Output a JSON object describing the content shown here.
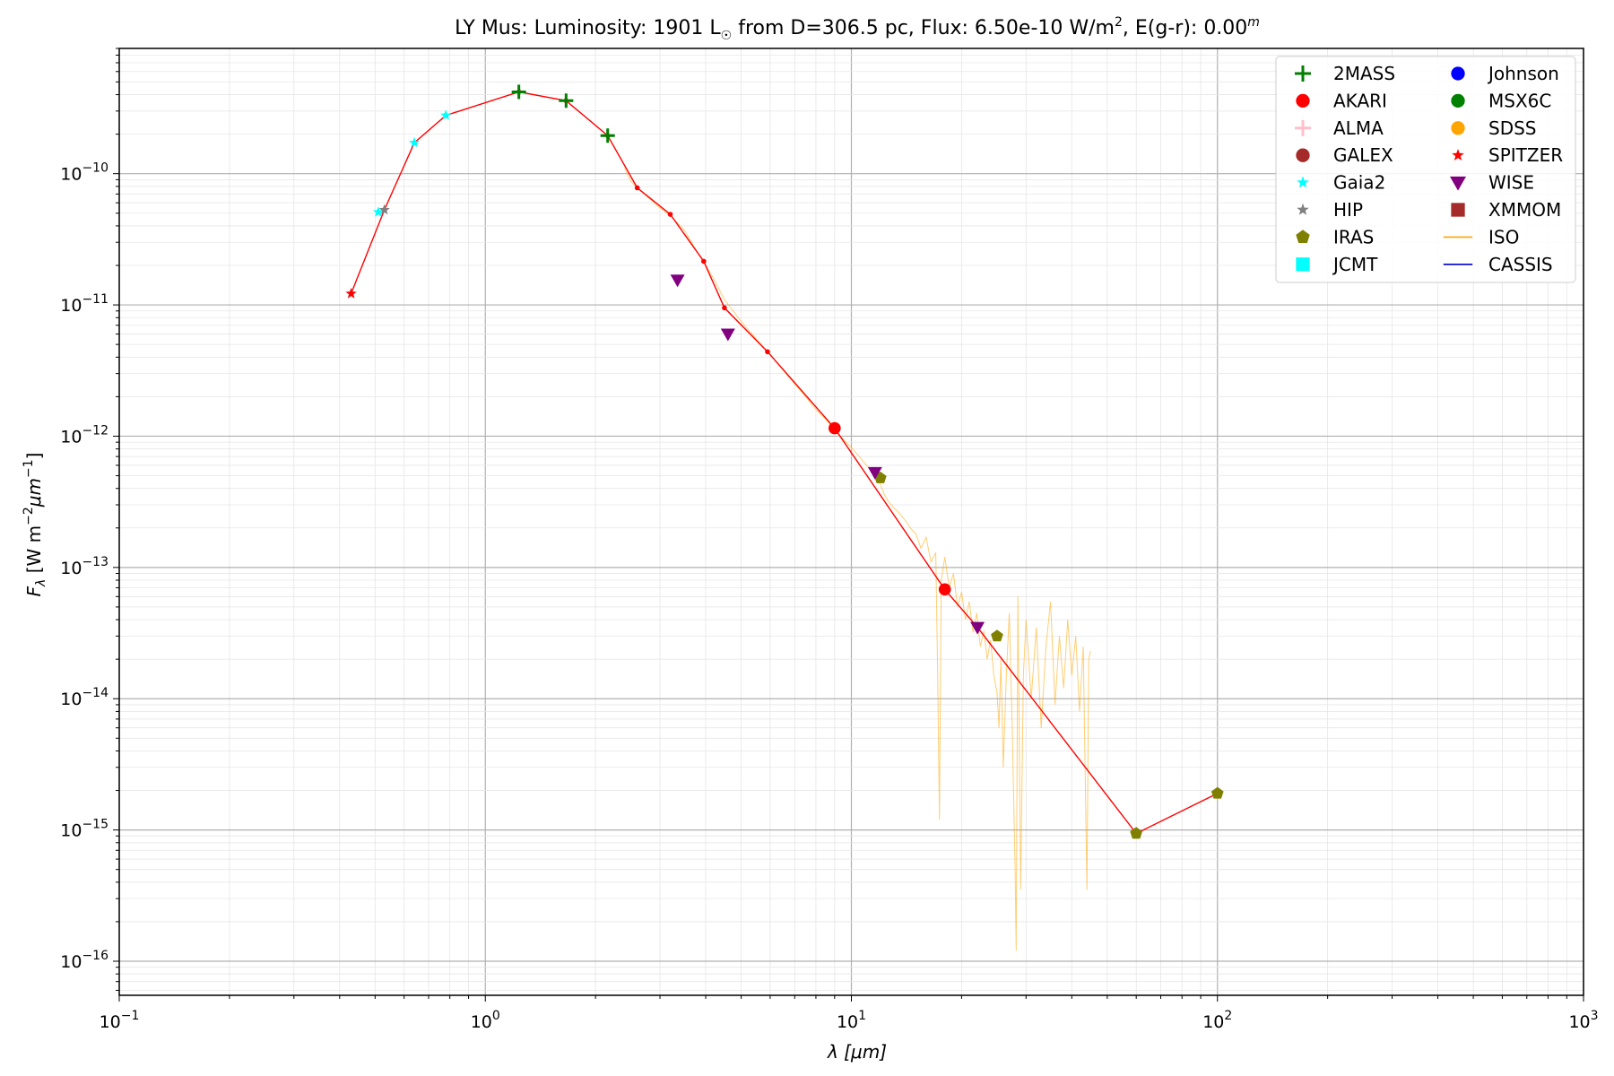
{
  "chart_data": {
    "type": "scatter",
    "title": {
      "prefix": "LY Mus:  Luminosity: 1901 L",
      "sun_symbol": "☉",
      "middle": " from D=306.5 pc, Flux: 6.50e-10 W/m",
      "sup1": "2",
      "suffix": ", E(g-r): 0.00",
      "sup2": "m"
    },
    "xlabel": "λ [μm]",
    "ylabel": "F_λ [W m^-2 μm^-1]",
    "x_scale": "log",
    "y_scale": "log",
    "xlim": [
      0.1,
      1000
    ],
    "ylim": [
      5.5e-17,
      9e-10
    ],
    "grid": true,
    "legend_position": "top-right",
    "x_ticks": [
      {
        "base": "10",
        "exp": "−1"
      },
      {
        "base": "10",
        "exp": "0"
      },
      {
        "base": "10",
        "exp": "1"
      },
      {
        "base": "10",
        "exp": "2"
      },
      {
        "base": "10",
        "exp": "3"
      }
    ],
    "y_ticks": [
      {
        "base": "10",
        "exp": "−16"
      },
      {
        "base": "10",
        "exp": "−15"
      },
      {
        "base": "10",
        "exp": "−14"
      },
      {
        "base": "10",
        "exp": "−13"
      },
      {
        "base": "10",
        "exp": "−12"
      },
      {
        "base": "10",
        "exp": "−11"
      },
      {
        "base": "10",
        "exp": "−10"
      }
    ],
    "series": [
      {
        "name": "2MASS",
        "marker": "plus",
        "color": "#008000",
        "points": [
          [
            1.235,
            4.2e-10
          ],
          [
            1.662,
            3.6e-10
          ],
          [
            2.159,
            1.95e-10
          ]
        ]
      },
      {
        "name": "AKARI",
        "marker": "circle",
        "color": "#ff0000",
        "points": [
          [
            9.0,
            1.15e-12
          ],
          [
            18.0,
            6.8e-14
          ]
        ]
      },
      {
        "name": "ALMA",
        "marker": "plus",
        "color": "#ffc0cb",
        "points": []
      },
      {
        "name": "GALEX",
        "marker": "circle",
        "color": "#a52a2a",
        "points": []
      },
      {
        "name": "Gaia2",
        "marker": "star",
        "color": "#00ffff",
        "points": [
          [
            0.51,
            5.1e-11
          ],
          [
            0.64,
            1.72e-10
          ],
          [
            0.78,
            2.78e-10
          ]
        ]
      },
      {
        "name": "HIP",
        "marker": "star",
        "color": "#808080",
        "points": [
          [
            0.43,
            1.22e-11
          ],
          [
            0.53,
            5.3e-11
          ]
        ]
      },
      {
        "name": "IRAS",
        "marker": "pentagon",
        "color": "#808000",
        "points": [
          [
            12.0,
            4.8e-13
          ],
          [
            25.0,
            3e-14
          ],
          [
            60.0,
            9.4e-16
          ],
          [
            100.0,
            1.9e-15
          ]
        ]
      },
      {
        "name": "JCMT",
        "marker": "square",
        "color": "#00ffff",
        "points": []
      },
      {
        "name": "Johnson",
        "marker": "circle",
        "color": "#0000ff",
        "points": []
      },
      {
        "name": "MSX6C",
        "marker": "circle",
        "color": "#008000",
        "points": []
      },
      {
        "name": "SDSS",
        "marker": "circle",
        "color": "#ffa500",
        "points": []
      },
      {
        "name": "SPITZER",
        "marker": "star",
        "color": "#ff0000",
        "points": [
          [
            0.43,
            1.22e-11
          ]
        ]
      },
      {
        "name": "WISE",
        "marker": "triangle-down",
        "color": "#800080",
        "points": [
          [
            3.35,
            1.55e-11
          ],
          [
            4.6,
            6e-12
          ],
          [
            11.6,
            5.3e-13
          ],
          [
            22.1,
            3.5e-14
          ]
        ]
      },
      {
        "name": "XMMOM",
        "marker": "square",
        "color": "#a52a2a",
        "points": []
      },
      {
        "name": "ISO",
        "marker": "line",
        "color": "#ffa500",
        "points": []
      },
      {
        "name": "CASSIS",
        "marker": "line",
        "color": "#0000cc",
        "points": []
      }
    ],
    "model_curve": {
      "color": "#ff0000",
      "points": [
        [
          0.43,
          1.22e-11
        ],
        [
          0.53,
          5.3e-11
        ],
        [
          0.64,
          1.72e-10
        ],
        [
          0.78,
          2.78e-10
        ],
        [
          1.235,
          4.2e-10
        ],
        [
          1.662,
          3.6e-10
        ],
        [
          2.159,
          1.95e-10
        ],
        [
          2.6,
          7.8e-11
        ],
        [
          3.2,
          4.9e-11
        ],
        [
          3.95,
          2.15e-11
        ],
        [
          4.5,
          9.5e-12
        ],
        [
          5.9,
          4.4e-12
        ],
        [
          9.0,
          1.15e-12
        ],
        [
          18.0,
          6.8e-14
        ],
        [
          22.1,
          3.5e-14
        ],
        [
          60.0,
          9.4e-16
        ],
        [
          100.0,
          1.9e-15
        ]
      ]
    },
    "iso_spectrum": {
      "color": "#ffa500",
      "points": [
        [
          2.4,
          1.1e-10
        ],
        [
          2.5,
          8.7e-11
        ],
        [
          2.6,
          7.8e-11
        ],
        [
          2.8,
          6.5e-11
        ],
        [
          3.0,
          5.5e-11
        ],
        [
          3.2,
          4.8e-11
        ],
        [
          3.5,
          3.7e-11
        ],
        [
          3.8,
          2.5e-11
        ],
        [
          4.0,
          2e-11
        ],
        [
          4.2,
          1.6e-11
        ],
        [
          4.5,
          1.1e-11
        ],
        [
          5.0,
          7.5e-12
        ],
        [
          5.5,
          5.5e-12
        ],
        [
          6.0,
          4.2e-12
        ],
        [
          6.5,
          3.2e-12
        ],
        [
          7.0,
          2.5e-12
        ],
        [
          7.5,
          2e-12
        ],
        [
          8.0,
          1.6e-12
        ],
        [
          8.5,
          1.35e-12
        ],
        [
          9.0,
          1.1e-12
        ],
        [
          9.5,
          9.5e-13
        ],
        [
          10.0,
          8.2e-13
        ],
        [
          10.5,
          7e-13
        ],
        [
          11.0,
          6e-13
        ],
        [
          11.5,
          5.2e-13
        ],
        [
          12.0,
          4.3e-13
        ],
        [
          12.3,
          3.6e-13
        ],
        [
          12.6,
          3.2e-13
        ],
        [
          13.0,
          2.9e-13
        ],
        [
          13.5,
          2.6e-13
        ],
        [
          14.0,
          2.3e-13
        ],
        [
          14.5,
          2e-13
        ],
        [
          15.0,
          1.8e-13
        ],
        [
          15.5,
          1.4e-13
        ],
        [
          16.0,
          1.7e-13
        ],
        [
          16.5,
          1.1e-13
        ],
        [
          17.0,
          1.3e-13
        ],
        [
          17.2,
          1.6e-14
        ],
        [
          17.4,
          1.2e-15
        ],
        [
          17.6,
          8e-14
        ],
        [
          18.0,
          1.2e-13
        ],
        [
          18.5,
          7e-14
        ],
        [
          19.0,
          9e-14
        ],
        [
          19.5,
          5e-14
        ],
        [
          20.0,
          6.5e-14
        ],
        [
          20.5,
          4e-14
        ],
        [
          21.0,
          5.5e-14
        ],
        [
          21.5,
          3.2e-14
        ],
        [
          22.0,
          4.5e-14
        ],
        [
          22.5,
          2.5e-14
        ],
        [
          23.0,
          3.3e-14
        ],
        [
          23.5,
          2e-14
        ],
        [
          24.0,
          2.8e-14
        ],
        [
          24.5,
          1.5e-14
        ],
        [
          25.0,
          1.1e-14
        ],
        [
          25.3,
          6e-15
        ],
        [
          25.6,
          2e-14
        ],
        [
          26.0,
          3e-15
        ],
        [
          26.5,
          1.5e-14
        ],
        [
          27.0,
          4.5e-14
        ],
        [
          27.5,
          6e-15
        ],
        [
          28.0,
          5e-16
        ],
        [
          28.2,
          1.2e-16
        ],
        [
          28.5,
          6e-14
        ],
        [
          29.0,
          3.5e-16
        ],
        [
          29.5,
          1.5e-14
        ],
        [
          30.0,
          4e-14
        ],
        [
          31.0,
          1e-14
        ],
        [
          32.0,
          3.5e-14
        ],
        [
          33.0,
          6e-15
        ],
        [
          34.0,
          2.5e-14
        ],
        [
          35.0,
          5.5e-14
        ],
        [
          36.0,
          9e-15
        ],
        [
          37.0,
          3e-14
        ],
        [
          38.0,
          1.2e-14
        ],
        [
          39.0,
          4e-14
        ],
        [
          40.0,
          1.5e-14
        ],
        [
          41.0,
          3e-14
        ],
        [
          42.0,
          8e-15
        ],
        [
          43.0,
          2.5e-14
        ],
        [
          44.0,
          3.5e-16
        ],
        [
          44.5,
          2e-14
        ],
        [
          45.0,
          2.3e-14
        ]
      ]
    },
    "legend": {
      "columns": [
        [
          {
            "label": "2MASS",
            "marker": "plus",
            "color": "#008000"
          },
          {
            "label": "AKARI",
            "marker": "circle",
            "color": "#ff0000"
          },
          {
            "label": "ALMA",
            "marker": "plus",
            "color": "#ffc0cb"
          },
          {
            "label": "GALEX",
            "marker": "circle",
            "color": "#a52a2a"
          },
          {
            "label": "Gaia2",
            "marker": "star",
            "color": "#00ffff"
          },
          {
            "label": "HIP",
            "marker": "star",
            "color": "#808080"
          },
          {
            "label": "IRAS",
            "marker": "pentagon",
            "color": "#808000"
          },
          {
            "label": "JCMT",
            "marker": "square",
            "color": "#00ffff"
          }
        ],
        [
          {
            "label": "Johnson",
            "marker": "circle",
            "color": "#0000ff"
          },
          {
            "label": "MSX6C",
            "marker": "circle",
            "color": "#008000"
          },
          {
            "label": "SDSS",
            "marker": "circle",
            "color": "#ffa500"
          },
          {
            "label": "SPITZER",
            "marker": "star",
            "color": "#ff0000"
          },
          {
            "label": "WISE",
            "marker": "triangle-down",
            "color": "#800080"
          },
          {
            "label": "XMMOM",
            "marker": "square",
            "color": "#a52a2a"
          },
          {
            "label": "ISO",
            "marker": "line",
            "color": "#ffa500"
          },
          {
            "label": "CASSIS",
            "marker": "line",
            "color": "#0000cc"
          }
        ]
      ]
    }
  }
}
